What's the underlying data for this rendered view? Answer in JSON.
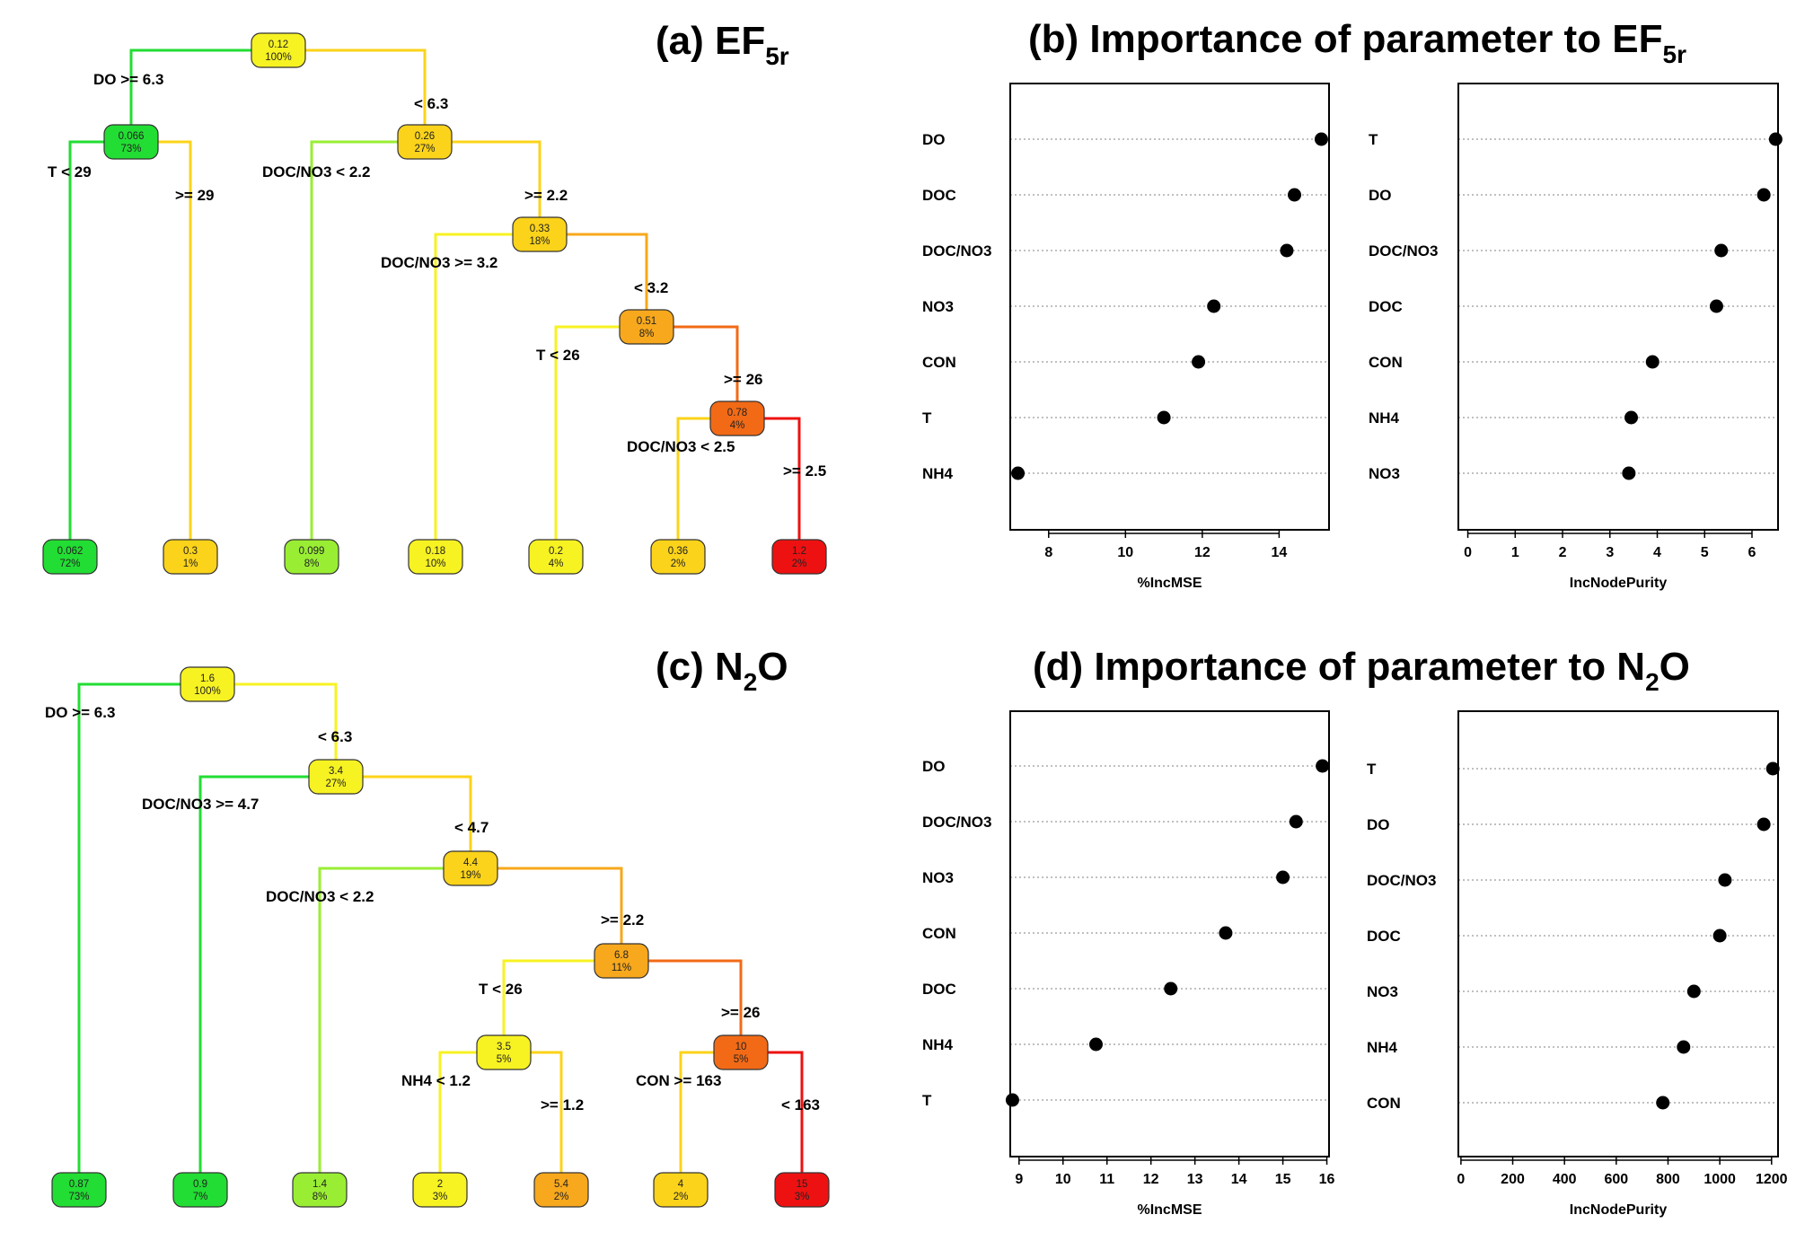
{
  "panels": {
    "a": {
      "title": "(a) EF",
      "sub": "5r"
    },
    "b": {
      "title": "(b) Importance of parameter to EF",
      "sub": "5r"
    },
    "c": {
      "title_pre": "(c) N",
      "sub": "2",
      "title_post": "O"
    },
    "d": {
      "title_pre": "(d) Importance of parameter to N",
      "sub": "2",
      "title_post": "O"
    }
  },
  "colors": {
    "green": "#22dd33",
    "lightgreen": "#99ee33",
    "yellow": "#f7f222",
    "lightorange": "#fbd31a",
    "orange": "#f7a81c",
    "darkorange": "#f26a16",
    "red": "#ee1111"
  },
  "chart_data": [
    {
      "type": "tree",
      "panel": "a",
      "nodes": [
        {
          "id": "n1",
          "value": "0.12",
          "pct": "100%",
          "color": "yellow"
        },
        {
          "id": "n2",
          "value": "0.066",
          "pct": "73%",
          "color": "green"
        },
        {
          "id": "n3",
          "value": "0.26",
          "pct": "27%",
          "color": "lightorange"
        },
        {
          "id": "n4",
          "value": "0.33",
          "pct": "18%",
          "color": "lightorange"
        },
        {
          "id": "n5",
          "value": "0.51",
          "pct": "8%",
          "color": "orange"
        },
        {
          "id": "n6",
          "value": "0.78",
          "pct": "4%",
          "color": "darkorange"
        },
        {
          "id": "l1",
          "value": "0.062",
          "pct": "72%",
          "color": "green"
        },
        {
          "id": "l2",
          "value": "0.3",
          "pct": "1%",
          "color": "lightorange"
        },
        {
          "id": "l3",
          "value": "0.099",
          "pct": "8%",
          "color": "lightgreen"
        },
        {
          "id": "l4",
          "value": "0.18",
          "pct": "10%",
          "color": "yellow"
        },
        {
          "id": "l5",
          "value": "0.2",
          "pct": "4%",
          "color": "yellow"
        },
        {
          "id": "l6",
          "value": "0.36",
          "pct": "2%",
          "color": "lightorange"
        },
        {
          "id": "l7",
          "value": "1.2",
          "pct": "2%",
          "color": "red"
        }
      ],
      "edges": [
        {
          "from": "n1",
          "to": "n2",
          "label": "DO >= 6.3",
          "color": "green"
        },
        {
          "from": "n1",
          "to": "n3",
          "label": "< 6.3",
          "color": "lightorange"
        },
        {
          "from": "n2",
          "to": "l1",
          "label": "T < 29",
          "color": "green"
        },
        {
          "from": "n2",
          "to": "l2",
          "label": ">= 29",
          "color": "lightorange"
        },
        {
          "from": "n3",
          "to": "l3",
          "label": "DOC/NO3 < 2.2",
          "color": "lightgreen"
        },
        {
          "from": "n3",
          "to": "n4",
          "label": ">= 2.2",
          "color": "lightorange"
        },
        {
          "from": "n4",
          "to": "l4",
          "label": "DOC/NO3 >= 3.2",
          "color": "yellow"
        },
        {
          "from": "n4",
          "to": "n5",
          "label": "< 3.2",
          "color": "orange"
        },
        {
          "from": "n5",
          "to": "l5",
          "label": "T < 26",
          "color": "yellow"
        },
        {
          "from": "n5",
          "to": "n6",
          "label": ">= 26",
          "color": "darkorange"
        },
        {
          "from": "n6",
          "to": "l6",
          "label": "DOC/NO3 < 2.5",
          "color": "lightorange"
        },
        {
          "from": "n6",
          "to": "l7",
          "label": ">= 2.5",
          "color": "red"
        }
      ]
    },
    {
      "type": "scatter",
      "panel": "b-left",
      "xlabel": "%IncMSE",
      "xlim": [
        7,
        15.3
      ],
      "xticks": [
        8,
        10,
        12,
        14
      ],
      "categories": [
        "DO",
        "DOC",
        "DOC/NO3",
        "NO3",
        "CON",
        "T",
        "NH4"
      ],
      "values": [
        15.1,
        14.4,
        14.2,
        12.3,
        11.9,
        11.0,
        7.2
      ]
    },
    {
      "type": "scatter",
      "panel": "b-right",
      "xlabel": "IncNodePurity",
      "xlim": [
        -0.2,
        6.55
      ],
      "xticks": [
        0,
        1,
        2,
        3,
        4,
        5,
        6
      ],
      "categories": [
        "T",
        "DO",
        "DOC/NO3",
        "DOC",
        "CON",
        "NH4",
        "NO3"
      ],
      "values": [
        6.5,
        6.25,
        5.35,
        5.25,
        3.9,
        3.45,
        3.4
      ]
    },
    {
      "type": "tree",
      "panel": "c",
      "nodes": [
        {
          "id": "n1",
          "value": "1.6",
          "pct": "100%",
          "color": "yellow"
        },
        {
          "id": "n3",
          "value": "3.4",
          "pct": "27%",
          "color": "yellow"
        },
        {
          "id": "n4",
          "value": "4.4",
          "pct": "19%",
          "color": "lightorange"
        },
        {
          "id": "n5",
          "value": "6.8",
          "pct": "11%",
          "color": "orange"
        },
        {
          "id": "n6",
          "value": "3.5",
          "pct": "5%",
          "color": "yellow"
        },
        {
          "id": "n7",
          "value": "10",
          "pct": "5%",
          "color": "darkorange"
        },
        {
          "id": "l1",
          "value": "0.87",
          "pct": "73%",
          "color": "green"
        },
        {
          "id": "l2",
          "value": "0.9",
          "pct": "7%",
          "color": "green"
        },
        {
          "id": "l3",
          "value": "1.4",
          "pct": "8%",
          "color": "lightgreen"
        },
        {
          "id": "l4",
          "value": "2",
          "pct": "3%",
          "color": "yellow"
        },
        {
          "id": "l5",
          "value": "5.4",
          "pct": "2%",
          "color": "orange"
        },
        {
          "id": "l6",
          "value": "4",
          "pct": "2%",
          "color": "lightorange"
        },
        {
          "id": "l7",
          "value": "15",
          "pct": "3%",
          "color": "red"
        }
      ],
      "edges": [
        {
          "from": "n1",
          "to": "l1",
          "label": "DO >= 6.3",
          "color": "green"
        },
        {
          "from": "n1",
          "to": "n3",
          "label": "< 6.3",
          "color": "yellow"
        },
        {
          "from": "n3",
          "to": "l2",
          "label": "DOC/NO3 >= 4.7",
          "color": "green"
        },
        {
          "from": "n3",
          "to": "n4",
          "label": "< 4.7",
          "color": "lightorange"
        },
        {
          "from": "n4",
          "to": "l3",
          "label": "DOC/NO3 < 2.2",
          "color": "lightgreen"
        },
        {
          "from": "n4",
          "to": "n5",
          "label": ">= 2.2",
          "color": "orange"
        },
        {
          "from": "n5",
          "to": "n6",
          "label": "T < 26",
          "color": "yellow"
        },
        {
          "from": "n5",
          "to": "n7",
          "label": ">= 26",
          "color": "darkorange"
        },
        {
          "from": "n6",
          "to": "l4",
          "label": "NH4 < 1.2",
          "color": "yellow"
        },
        {
          "from": "n6",
          "to": "l5",
          "label": ">= 1.2",
          "color": "lightorange"
        },
        {
          "from": "n7",
          "to": "l6",
          "label": "CON >= 163",
          "color": "lightorange"
        },
        {
          "from": "n7",
          "to": "l7",
          "label": "< 163",
          "color": "red"
        }
      ]
    },
    {
      "type": "scatter",
      "panel": "d-left",
      "xlabel": "%IncMSE",
      "xlim": [
        8.8,
        16.05
      ],
      "xticks": [
        9,
        10,
        11,
        12,
        13,
        14,
        15,
        16
      ],
      "categories": [
        "DO",
        "DOC/NO3",
        "NO3",
        "CON",
        "DOC",
        "NH4",
        "T"
      ],
      "values": [
        15.9,
        15.3,
        15.0,
        13.7,
        12.45,
        10.75,
        8.85
      ]
    },
    {
      "type": "scatter",
      "panel": "d-right",
      "xlabel": "IncNodePurity",
      "xlim": [
        -10,
        1225
      ],
      "xticks": [
        0,
        200,
        400,
        600,
        800,
        1000,
        1200
      ],
      "categories": [
        "T",
        "DO",
        "DOC/NO3",
        "DOC",
        "NO3",
        "NH4",
        "CON"
      ],
      "values": [
        1205,
        1170,
        1020,
        1000,
        900,
        860,
        780
      ]
    }
  ]
}
